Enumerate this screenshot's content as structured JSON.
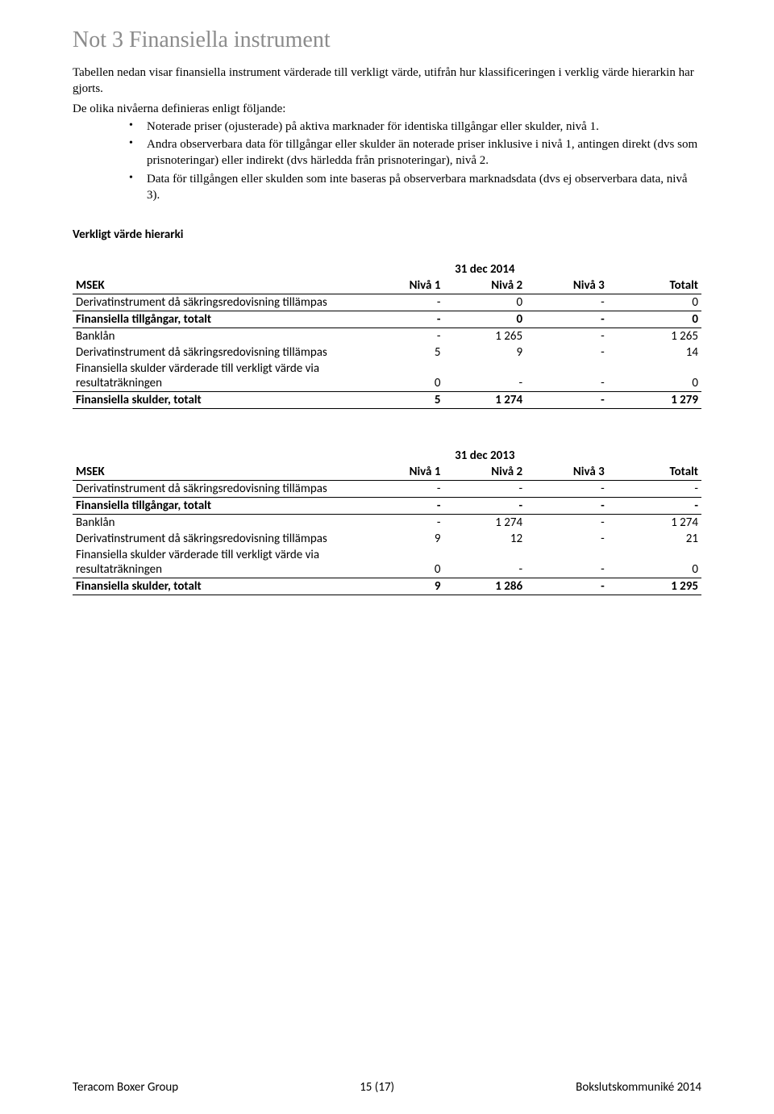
{
  "title": "Not 3 Finansiella instrument",
  "intro": "Tabellen nedan visar finansiella instrument värderade till verkligt värde, utifrån hur klassificeringen i verklig värde hierarkin har gjorts.",
  "list_intro": "De olika nivåerna definieras enligt följande:",
  "bullets": [
    "Noterade priser (ojusterade) på aktiva marknader för identiska tillgångar eller skulder, nivå 1.",
    "Andra observerbara data för tillgångar eller skulder än noterade priser inklusive i nivå 1, antingen direkt (dvs som prisnoteringar) eller indirekt (dvs härledda från prisnoteringar), nivå 2.",
    "Data för tillgången eller skulden som inte baseras på observerbara marknadsdata (dvs ej observerbara data, nivå 3)."
  ],
  "subhead": "Verkligt värde hierarki",
  "tables": [
    {
      "period": "31 dec 2014",
      "key_label": "MSEK",
      "columns": [
        "Nivå 1",
        "Nivå 2",
        "Nivå 3",
        "Totalt"
      ],
      "rows": [
        {
          "label": "Derivatinstrument då säkringsredovisning tillämpas",
          "values": [
            "-",
            "0",
            "-",
            "0"
          ],
          "style": "plain"
        },
        {
          "label": "Finansiella tillgångar, totalt",
          "values": [
            "-",
            "0",
            "-",
            "0"
          ],
          "style": "bold"
        },
        {
          "label": "Banklån",
          "values": [
            "-",
            "1 265",
            "-",
            "1 265"
          ],
          "style": "sep"
        },
        {
          "label": "Derivatinstrument då säkringsredovisning tillämpas",
          "values": [
            "5",
            "9",
            "-",
            "14"
          ],
          "style": "plain"
        },
        {
          "label": "Finansiella skulder värderade till verkligt värde via resultaträkningen",
          "values": [
            "0",
            "-",
            "-",
            "0"
          ],
          "style": "plain"
        },
        {
          "label": "Finansiella skulder, totalt",
          "values": [
            "5",
            "1 274",
            "-",
            "1 279"
          ],
          "style": "bold"
        }
      ]
    },
    {
      "period": "31 dec 2013",
      "key_label": "MSEK",
      "columns": [
        "Nivå 1",
        "Nivå 2",
        "Nivå 3",
        "Totalt"
      ],
      "rows": [
        {
          "label": "Derivatinstrument då säkringsredovisning tillämpas",
          "values": [
            "-",
            "-",
            "-",
            "-"
          ],
          "style": "plain"
        },
        {
          "label": "Finansiella tillgångar, totalt",
          "values": [
            "-",
            "-",
            "-",
            "-"
          ],
          "style": "bold"
        },
        {
          "label": "Banklån",
          "values": [
            "-",
            "1 274",
            "-",
            "1 274"
          ],
          "style": "sep"
        },
        {
          "label": "Derivatinstrument då säkringsredovisning tillämpas",
          "values": [
            "9",
            "12",
            "-",
            "21"
          ],
          "style": "plain"
        },
        {
          "label": "Finansiella skulder värderade till verkligt värde via resultaträkningen",
          "values": [
            "0",
            "-",
            "-",
            "0"
          ],
          "style": "plain"
        },
        {
          "label": "Finansiella skulder, totalt",
          "values": [
            "9",
            "1 286",
            "-",
            "1 295"
          ],
          "style": "bold"
        }
      ]
    }
  ],
  "footer": {
    "left": "Teracom Boxer Group",
    "center": "15 (17)",
    "right": "Bokslutskommuniké 2014"
  }
}
